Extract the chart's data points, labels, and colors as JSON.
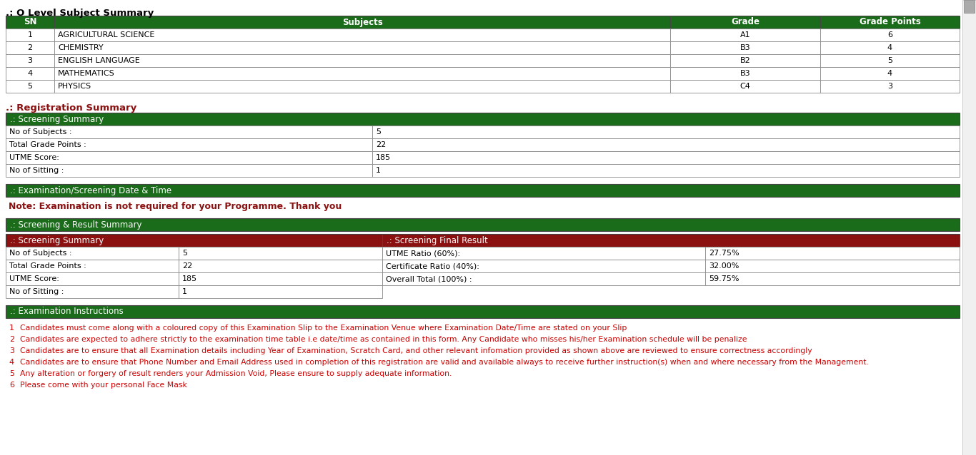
{
  "title_olevel": ".: O Level Subject Summary",
  "olevel_headers": [
    "SN",
    "Subjects",
    "Grade",
    "Grade Points"
  ],
  "olevel_rows": [
    [
      "1",
      "AGRICULTURAL SCIENCE",
      "A1",
      "6"
    ],
    [
      "2",
      "CHEMISTRY",
      "B3",
      "4"
    ],
    [
      "3",
      "ENGLISH LANGUAGE",
      "B2",
      "5"
    ],
    [
      "4",
      "MATHEMATICS",
      "B3",
      "4"
    ],
    [
      "5",
      "PHYSICS",
      "C4",
      "3"
    ]
  ],
  "reg_summary_title": ".: Registration Summary",
  "screening_summary_title": ".: Screening Summary",
  "screening_summary_rows": [
    [
      "No of Subjects :",
      "5"
    ],
    [
      "Total Grade Points :",
      "22"
    ],
    [
      "UTME Score:",
      "185"
    ],
    [
      "No of Sitting :",
      "1"
    ]
  ],
  "exam_date_title": ".: Examination/Screening Date & Time",
  "exam_note": "Note: Examination is not required for your Programme. Thank you",
  "result_summary_title": ".: Screening & Result Summary",
  "screening_summary2_title": ".: Screening Summary",
  "screening_summary2_rows": [
    [
      "No of Subjects :",
      "5"
    ],
    [
      "Total Grade Points :",
      "22"
    ],
    [
      "UTME Score:",
      "185"
    ],
    [
      "No of Sitting :",
      "1"
    ]
  ],
  "final_result_title": ".: Screening Final Result",
  "final_result_rows": [
    [
      "UTME Ratio (60%):",
      "27.75%"
    ],
    [
      "Certificate Ratio (40%):",
      "32.00%"
    ],
    [
      "Overall Total (100%) :",
      "59.75%"
    ]
  ],
  "exam_instructions_title": ".: Examination Instructions",
  "instructions": [
    "Candidates must come along with a coloured copy of this Examination Slip to the Examination Venue where Examination Date/Time are stated on your Slip",
    "Candidates are expected to adhere strictly to the examination time table i.e date/time as contained in this form. Any Candidate who misses his/her Examination schedule will be penalize",
    "Candidates are to ensure that all Examination details including Year of Examination, Scratch Card, and other relevant infomation provided as shown above are reviewed to ensure correctness accordingly",
    "Candidates are to ensure that Phone Number and Email Address used in completion of this registration are valid and available always to receive further instruction(s) when and where necessary from the Management.",
    "Any alteration or forgery of result renders your Admission Void, Please ensure to supply adequate information.",
    "Please come with your personal Face Mask"
  ],
  "dark_green": "#1a6b1a",
  "dark_red": "#8B1010",
  "white": "#FFFFFF",
  "black": "#000000",
  "red_text": "#CC0000",
  "bg_color": "#FFFFFF"
}
